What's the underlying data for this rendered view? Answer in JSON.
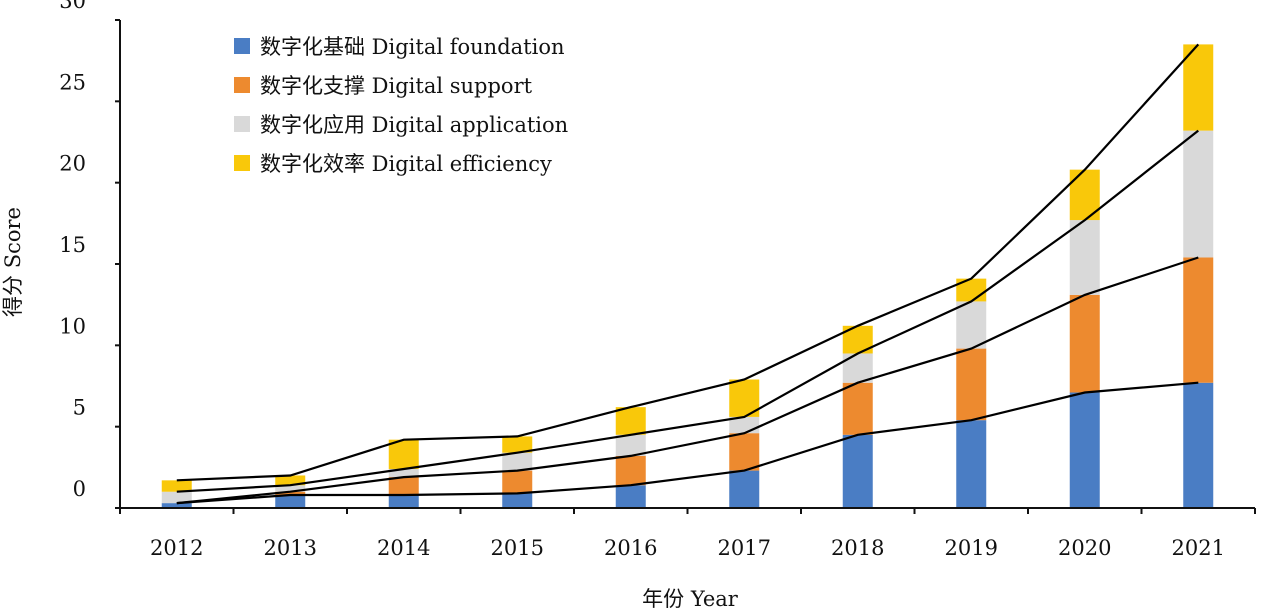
{
  "chart_data": {
    "type": "bar",
    "stacked": true,
    "categories": [
      "2012",
      "2013",
      "2014",
      "2015",
      "2016",
      "2017",
      "2018",
      "2019",
      "2020",
      "2021"
    ],
    "series": [
      {
        "name": "数字化基础 Digital foundation",
        "color": "#4a7dc4",
        "values": [
          0.3,
          0.8,
          0.8,
          0.9,
          1.4,
          2.3,
          4.5,
          5.4,
          7.1,
          7.7
        ]
      },
      {
        "name": "数字化支撑 Digital support",
        "color": "#ed8a2f",
        "values": [
          0.0,
          0.2,
          1.1,
          1.4,
          1.8,
          2.3,
          3.2,
          4.4,
          6.0,
          7.7
        ]
      },
      {
        "name": "数字化应用 Digital application",
        "color": "#d9d9d9",
        "values": [
          0.7,
          0.4,
          0.5,
          1.1,
          1.3,
          1.0,
          1.8,
          2.9,
          4.6,
          7.8
        ]
      },
      {
        "name": "数字化效率 Digital efficiency",
        "color": "#f9c80a",
        "values": [
          0.7,
          0.6,
          1.8,
          1.0,
          1.7,
          2.3,
          1.7,
          1.4,
          3.1,
          5.3
        ]
      }
    ],
    "xlabel": "年份 Year",
    "ylabel": "得分 Score",
    "ylim": [
      0,
      30
    ],
    "yticks": [
      "0",
      "5",
      "10",
      "15",
      "20",
      "25",
      "30"
    ],
    "connector_lines": true,
    "grid": false,
    "legend_position": "top-left"
  }
}
